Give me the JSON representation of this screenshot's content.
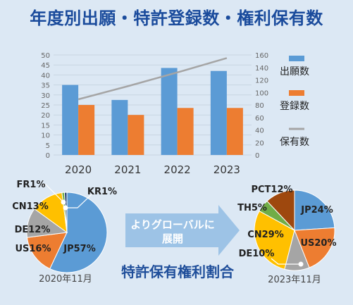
{
  "title": "年度別出願・特許登録数・権利保有数",
  "colors": {
    "bg": "#dce8f4",
    "title": "#1a4b9c",
    "blue": "#5b9bd5",
    "orange": "#ed7d31",
    "gray": "#a5a5a5",
    "yellow": "#ffc000",
    "green": "#70ad47",
    "brown": "#9e480e",
    "darkblue": "#1f4e9a",
    "arrow": "#9dc3e6"
  },
  "chart_data": [
    {
      "type": "bar",
      "categories": [
        "2020",
        "2021",
        "2022",
        "2023"
      ],
      "series": [
        {
          "name": "出願数",
          "values": [
            35,
            27.5,
            43.5,
            42
          ],
          "axis": "left",
          "color": "#5b9bd5"
        },
        {
          "name": "登録数",
          "values": [
            25,
            20,
            23.5,
            23.5
          ],
          "axis": "left",
          "color": "#ed7d31"
        },
        {
          "name": "保有数",
          "values": [
            89,
            110,
            132,
            155
          ],
          "axis": "right",
          "type": "line",
          "color": "#a5a5a5"
        }
      ],
      "ylim": [
        0,
        50
      ],
      "y_ticks": [
        "0",
        "5",
        "10",
        "15",
        "20",
        "25",
        "30",
        "35",
        "40",
        "45",
        "50"
      ],
      "y2lim": [
        0,
        160
      ],
      "y2_ticks": [
        "0",
        "20",
        "40",
        "60",
        "80",
        "100",
        "120",
        "140",
        "160"
      ],
      "grid": true,
      "legend": "right"
    },
    {
      "type": "pie",
      "caption": "2020年11月",
      "slices": [
        {
          "label": "JP",
          "value": 57,
          "text": "JP57%",
          "color": "#5b9bd5"
        },
        {
          "label": "US",
          "value": 16,
          "text": "US16%",
          "color": "#ed7d31"
        },
        {
          "label": "DE",
          "value": 12,
          "text": "DE12%",
          "color": "#a5a5a5"
        },
        {
          "label": "CN",
          "value": 13,
          "text": "CN13%",
          "color": "#ffc000"
        },
        {
          "label": "FR",
          "value": 1,
          "text": "FR1%",
          "color": "#70ad47"
        },
        {
          "label": "KR",
          "value": 1,
          "text": "KR1%",
          "color": "#264478"
        }
      ]
    },
    {
      "type": "pie",
      "caption": "2023年11月",
      "slices": [
        {
          "label": "JP",
          "value": 24,
          "text": "JP24%",
          "color": "#5b9bd5"
        },
        {
          "label": "US",
          "value": 20,
          "text": "US20%",
          "color": "#ed7d31"
        },
        {
          "label": "DE",
          "value": 10,
          "text": "DE10%",
          "color": "#a5a5a5"
        },
        {
          "label": "CN",
          "value": 29,
          "text": "CN29%",
          "color": "#ffc000"
        },
        {
          "label": "TH",
          "value": 5,
          "text": "TH5%",
          "color": "#70ad47"
        },
        {
          "label": "PCT",
          "value": 12,
          "text": "PCT12%",
          "color": "#9e480e"
        }
      ]
    }
  ],
  "arrow_text": [
    "よりグローバルに",
    "展開"
  ],
  "subtitle": "特許保有権利割合"
}
